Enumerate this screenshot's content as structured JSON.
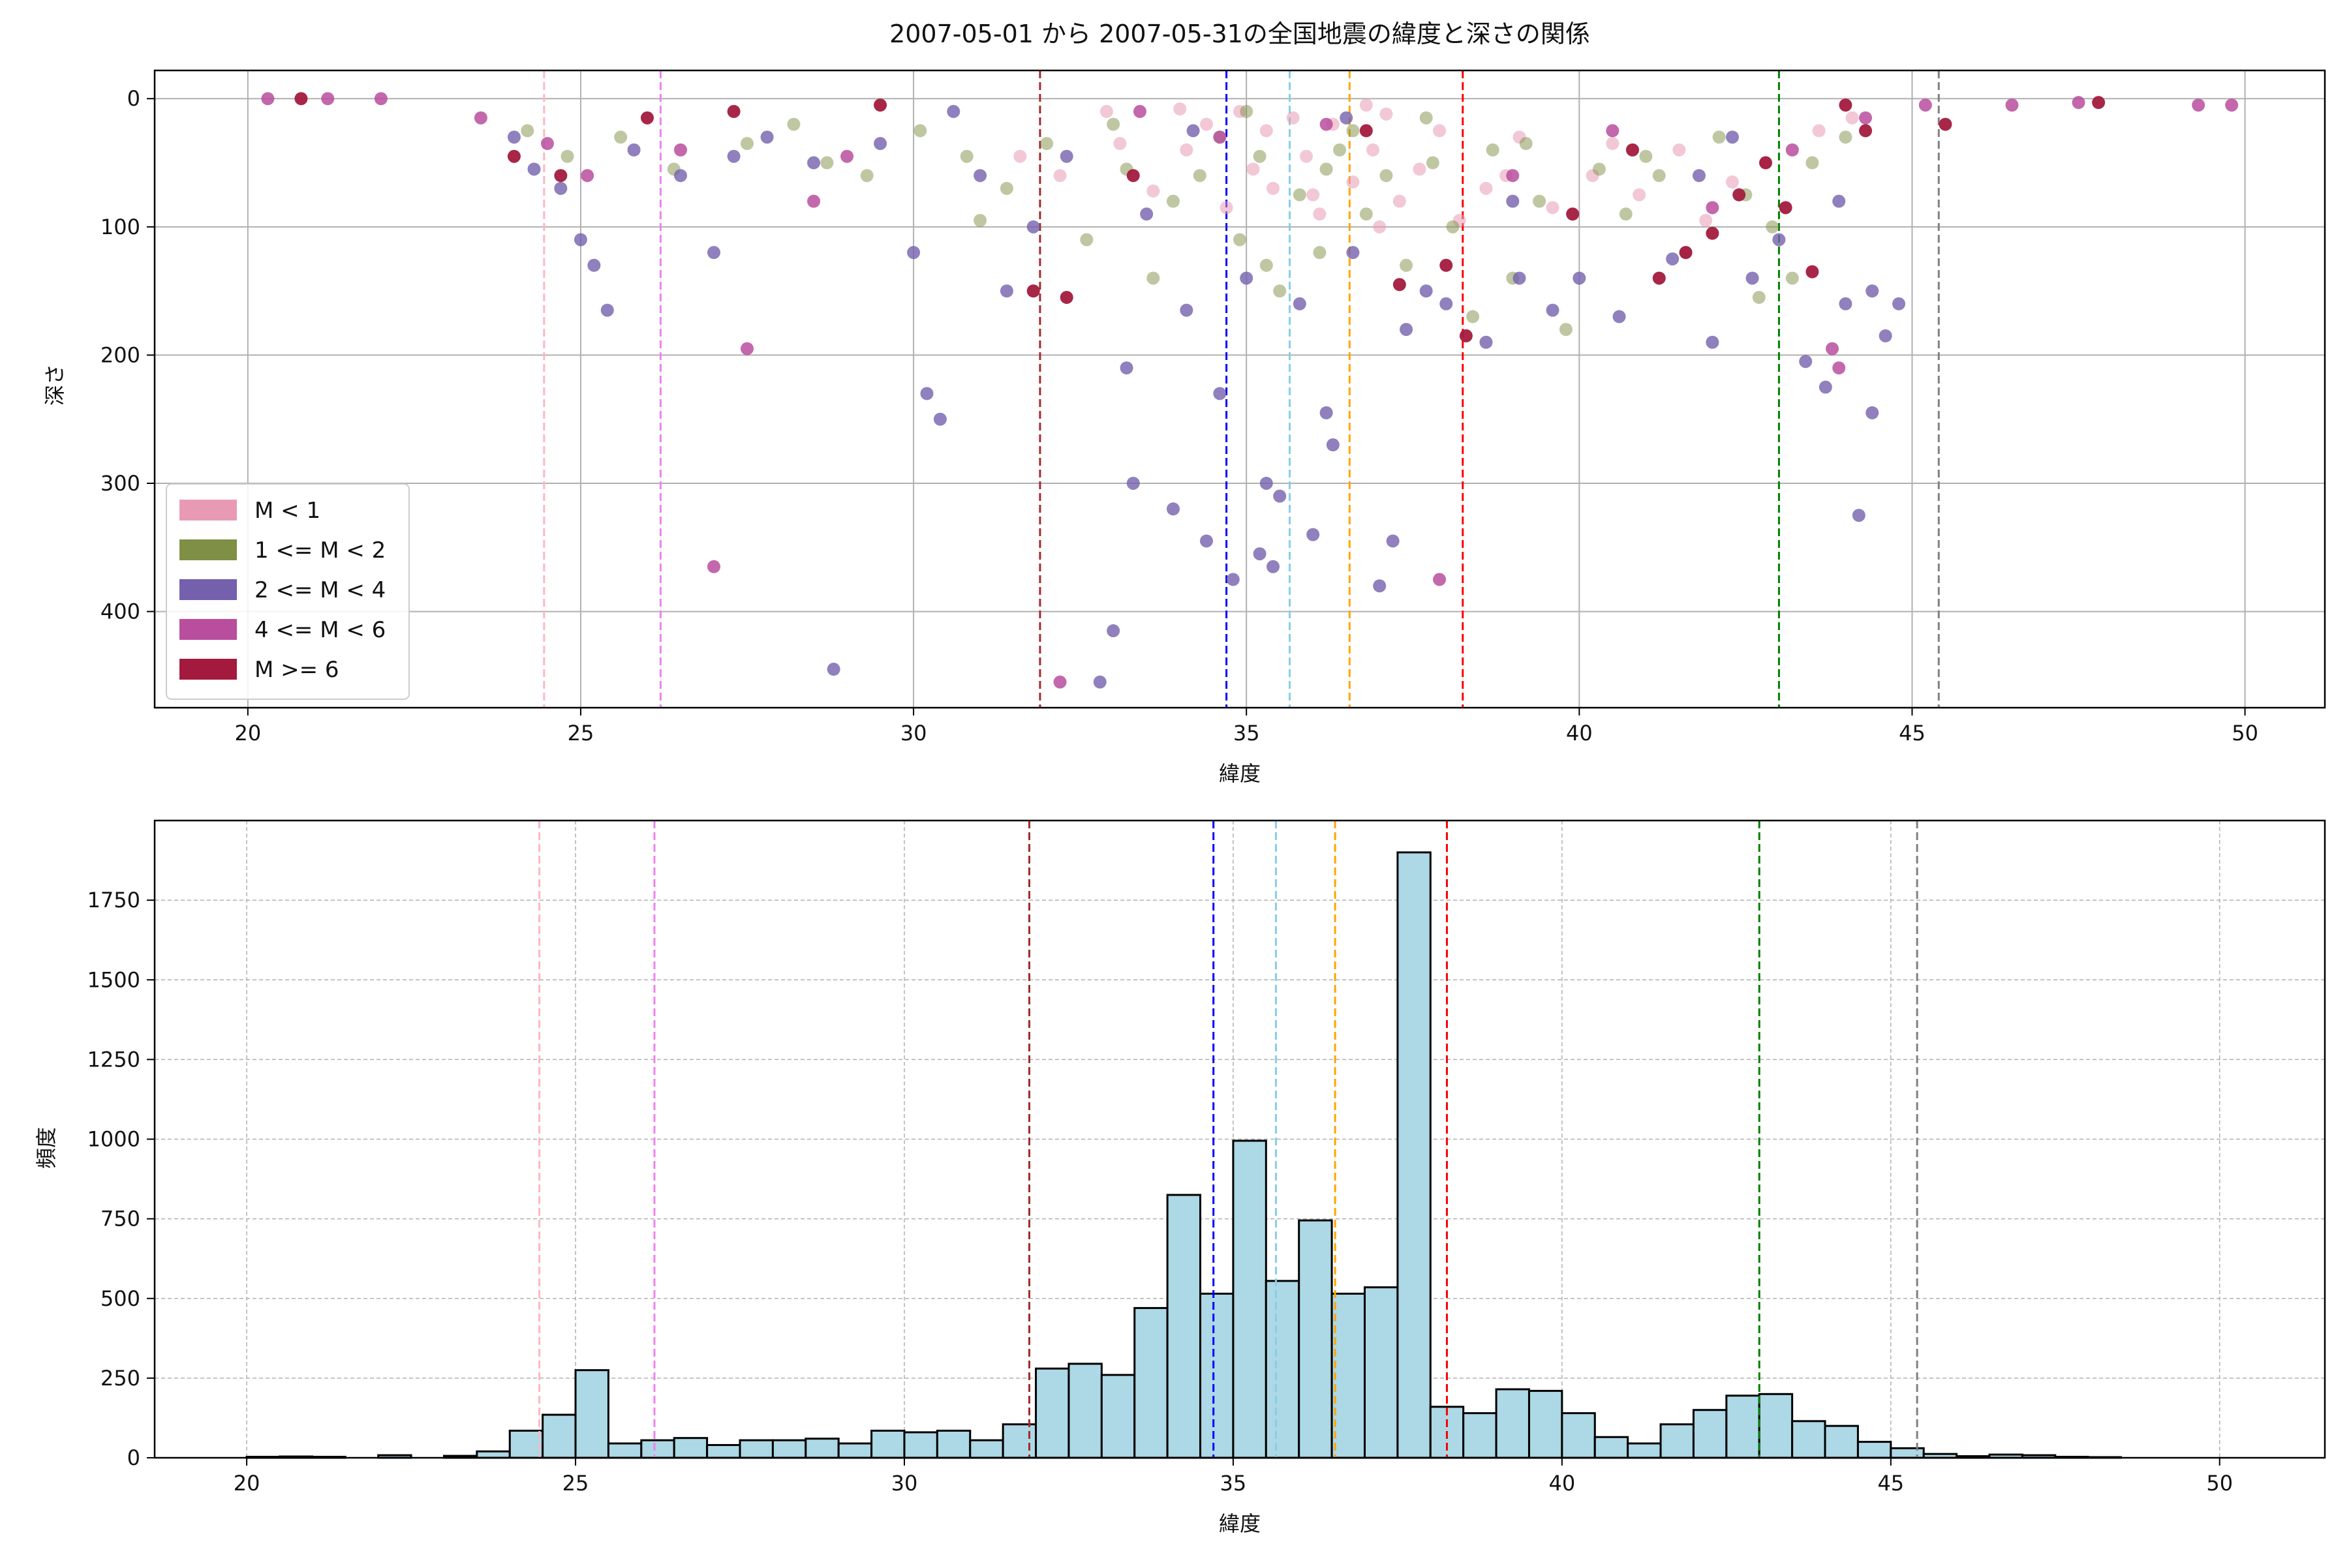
{
  "colors": {
    "m_lt1": "#e89ab5",
    "m_1_2": "#7f8f45",
    "m_2_4": "#7460ad",
    "m_4_6": "#b94d9e",
    "m_ge6": "#a31a3e",
    "hist_fill": "#add8e6",
    "vlines": [
      "#ffb6c1",
      "#ee82ee",
      "#a52a2a",
      "#0000ff",
      "#87ceeb",
      "#ffa500",
      "#ff0000",
      "#008000",
      "#808080"
    ]
  },
  "chart_data": [
    {
      "type": "scatter",
      "title": "2007-05-01 から 2007-05-31の全国地震の緯度と深さの関係",
      "xlabel": "緯度",
      "ylabel": "深さ",
      "xlim": [
        18.6,
        51.2
      ],
      "ylim": [
        475,
        -22
      ],
      "y_inverted": true,
      "grid": true,
      "xticks": [
        20,
        25,
        30,
        35,
        40,
        45,
        50
      ],
      "yticks": [
        0,
        100,
        200,
        300,
        400
      ],
      "legend_position": "lower-left",
      "vlines": [
        24.45,
        26.2,
        31.9,
        34.7,
        35.65,
        36.55,
        38.25,
        43.0,
        45.4
      ],
      "series": [
        {
          "name": "M < 1",
          "points": [
            [
              31.6,
              45
            ],
            [
              32.2,
              60
            ],
            [
              33.1,
              35
            ],
            [
              33.6,
              72
            ],
            [
              34.1,
              40
            ],
            [
              34.4,
              20
            ],
            [
              34.9,
              10
            ],
            [
              35.1,
              55
            ],
            [
              35.4,
              70
            ],
            [
              35.7,
              15
            ],
            [
              35.9,
              45
            ],
            [
              36.1,
              90
            ],
            [
              36.3,
              20
            ],
            [
              36.6,
              65
            ],
            [
              36.9,
              40
            ],
            [
              37.1,
              12
            ],
            [
              37.3,
              80
            ],
            [
              37.6,
              55
            ],
            [
              37.9,
              25
            ],
            [
              38.2,
              95
            ],
            [
              38.6,
              70
            ],
            [
              39.1,
              30
            ],
            [
              39.6,
              85
            ],
            [
              40.2,
              60
            ],
            [
              40.9,
              75
            ],
            [
              41.5,
              40
            ],
            [
              41.9,
              95
            ],
            [
              42.3,
              65
            ],
            [
              42.8,
              50
            ],
            [
              43.6,
              25
            ],
            [
              44.1,
              15
            ],
            [
              32.9,
              10
            ],
            [
              34.7,
              85
            ],
            [
              36.0,
              75
            ],
            [
              37.0,
              100
            ],
            [
              38.9,
              60
            ],
            [
              40.5,
              35
            ],
            [
              35.3,
              25
            ],
            [
              36.8,
              5
            ],
            [
              34.0,
              8
            ]
          ]
        },
        {
          "name": "1 <= M < 2",
          "points": [
            [
              24.2,
              25
            ],
            [
              24.8,
              45
            ],
            [
              25.6,
              30
            ],
            [
              26.4,
              55
            ],
            [
              27.5,
              35
            ],
            [
              28.2,
              20
            ],
            [
              29.3,
              60
            ],
            [
              30.1,
              25
            ],
            [
              30.8,
              45
            ],
            [
              31.4,
              70
            ],
            [
              32.0,
              35
            ],
            [
              32.6,
              110
            ],
            [
              33.2,
              55
            ],
            [
              33.6,
              140
            ],
            [
              33.9,
              80
            ],
            [
              34.3,
              60
            ],
            [
              34.6,
              30
            ],
            [
              34.9,
              110
            ],
            [
              35.2,
              45
            ],
            [
              35.5,
              150
            ],
            [
              35.8,
              75
            ],
            [
              36.1,
              120
            ],
            [
              36.4,
              40
            ],
            [
              36.8,
              90
            ],
            [
              37.1,
              60
            ],
            [
              37.4,
              130
            ],
            [
              37.8,
              50
            ],
            [
              38.1,
              100
            ],
            [
              38.4,
              170
            ],
            [
              38.7,
              40
            ],
            [
              39.0,
              140
            ],
            [
              39.4,
              80
            ],
            [
              39.8,
              180
            ],
            [
              40.3,
              55
            ],
            [
              40.7,
              90
            ],
            [
              41.2,
              60
            ],
            [
              41.6,
              120
            ],
            [
              42.1,
              30
            ],
            [
              42.5,
              75
            ],
            [
              42.9,
              100
            ],
            [
              43.2,
              140
            ],
            [
              43.5,
              50
            ],
            [
              44.0,
              30
            ],
            [
              28.7,
              50
            ],
            [
              31.0,
              95
            ],
            [
              33.0,
              20
            ],
            [
              35.0,
              10
            ],
            [
              36.6,
              25
            ],
            [
              37.7,
              15
            ],
            [
              39.2,
              35
            ],
            [
              41.0,
              45
            ],
            [
              42.7,
              155
            ],
            [
              35.3,
              130
            ],
            [
              36.2,
              55
            ]
          ]
        },
        {
          "name": "2 <= M < 4",
          "points": [
            [
              24.0,
              30
            ],
            [
              24.3,
              55
            ],
            [
              24.7,
              70
            ],
            [
              25.0,
              110
            ],
            [
              25.2,
              130
            ],
            [
              25.4,
              165
            ],
            [
              25.8,
              40
            ],
            [
              26.5,
              60
            ],
            [
              27.0,
              120
            ],
            [
              27.8,
              30
            ],
            [
              28.5,
              50
            ],
            [
              28.8,
              445
            ],
            [
              29.5,
              35
            ],
            [
              30.0,
              120
            ],
            [
              30.2,
              230
            ],
            [
              30.4,
              250
            ],
            [
              31.0,
              60
            ],
            [
              31.4,
              150
            ],
            [
              31.8,
              100
            ],
            [
              32.3,
              45
            ],
            [
              32.8,
              455
            ],
            [
              33.0,
              415
            ],
            [
              33.2,
              210
            ],
            [
              33.3,
              300
            ],
            [
              33.5,
              90
            ],
            [
              33.9,
              320
            ],
            [
              34.1,
              165
            ],
            [
              34.4,
              345
            ],
            [
              34.6,
              230
            ],
            [
              34.8,
              375
            ],
            [
              35.0,
              140
            ],
            [
              35.2,
              355
            ],
            [
              35.3,
              300
            ],
            [
              35.4,
              365
            ],
            [
              35.5,
              310
            ],
            [
              35.8,
              160
            ],
            [
              36.0,
              340
            ],
            [
              36.2,
              245
            ],
            [
              36.3,
              270
            ],
            [
              36.6,
              120
            ],
            [
              37.0,
              380
            ],
            [
              37.2,
              345
            ],
            [
              37.4,
              180
            ],
            [
              37.7,
              150
            ],
            [
              38.0,
              160
            ],
            [
              38.6,
              190
            ],
            [
              39.1,
              140
            ],
            [
              39.6,
              165
            ],
            [
              40.0,
              140
            ],
            [
              40.6,
              170
            ],
            [
              41.4,
              125
            ],
            [
              42.0,
              190
            ],
            [
              42.6,
              140
            ],
            [
              43.0,
              110
            ],
            [
              43.4,
              205
            ],
            [
              43.7,
              225
            ],
            [
              44.0,
              160
            ],
            [
              44.2,
              325
            ],
            [
              44.4,
              245
            ],
            [
              44.6,
              185
            ],
            [
              44.8,
              160
            ],
            [
              39.0,
              80
            ],
            [
              41.8,
              60
            ],
            [
              42.3,
              30
            ],
            [
              36.5,
              15
            ],
            [
              34.2,
              25
            ],
            [
              30.6,
              10
            ],
            [
              27.3,
              45
            ],
            [
              43.9,
              80
            ],
            [
              44.4,
              150
            ]
          ]
        },
        {
          "name": "4 <= M < 6",
          "points": [
            [
              20.3,
              0
            ],
            [
              21.2,
              0
            ],
            [
              22.0,
              0
            ],
            [
              23.5,
              15
            ],
            [
              24.5,
              35
            ],
            [
              25.1,
              60
            ],
            [
              26.5,
              40
            ],
            [
              27.0,
              365
            ],
            [
              27.5,
              195
            ],
            [
              28.5,
              80
            ],
            [
              29.0,
              45
            ],
            [
              32.2,
              455
            ],
            [
              34.6,
              30
            ],
            [
              36.2,
              20
            ],
            [
              37.9,
              375
            ],
            [
              39.0,
              60
            ],
            [
              42.0,
              85
            ],
            [
              43.2,
              40
            ],
            [
              43.8,
              195
            ],
            [
              43.9,
              210
            ],
            [
              45.2,
              5
            ],
            [
              46.5,
              5
            ],
            [
              47.5,
              3
            ],
            [
              49.3,
              5
            ],
            [
              49.8,
              5
            ],
            [
              44.3,
              15
            ],
            [
              40.5,
              25
            ],
            [
              33.4,
              10
            ]
          ]
        },
        {
          "name": "M >= 6",
          "points": [
            [
              20.8,
              0
            ],
            [
              24.0,
              45
            ],
            [
              24.7,
              60
            ],
            [
              26.0,
              15
            ],
            [
              27.3,
              10
            ],
            [
              29.5,
              5
            ],
            [
              31.8,
              150
            ],
            [
              32.3,
              155
            ],
            [
              33.3,
              60
            ],
            [
              36.8,
              25
            ],
            [
              37.3,
              145
            ],
            [
              38.0,
              130
            ],
            [
              38.3,
              185
            ],
            [
              39.9,
              90
            ],
            [
              41.2,
              140
            ],
            [
              41.6,
              120
            ],
            [
              42.0,
              105
            ],
            [
              42.4,
              75
            ],
            [
              42.8,
              50
            ],
            [
              43.1,
              85
            ],
            [
              43.5,
              135
            ],
            [
              44.0,
              5
            ],
            [
              44.3,
              25
            ],
            [
              45.5,
              20
            ],
            [
              47.8,
              3
            ],
            [
              40.8,
              40
            ]
          ]
        }
      ]
    },
    {
      "type": "bar",
      "xlabel": "緯度",
      "ylabel": "頻度",
      "xlim": [
        18.6,
        51.6
      ],
      "ylim": [
        0,
        2000
      ],
      "grid": true,
      "xticks": [
        20,
        25,
        30,
        35,
        40,
        45,
        50
      ],
      "yticks": [
        0,
        250,
        500,
        750,
        1000,
        1250,
        1500,
        1750
      ],
      "bin_width": 0.5,
      "vlines": [
        24.45,
        26.2,
        31.9,
        34.7,
        35.65,
        36.55,
        38.25,
        43.0,
        45.4
      ],
      "bins": [
        [
          20.0,
          3
        ],
        [
          20.5,
          4
        ],
        [
          21.0,
          3
        ],
        [
          22.0,
          8
        ],
        [
          23.0,
          6
        ],
        [
          23.5,
          20
        ],
        [
          24.0,
          85
        ],
        [
          24.5,
          135
        ],
        [
          25.0,
          275
        ],
        [
          25.5,
          45
        ],
        [
          26.0,
          55
        ],
        [
          26.5,
          62
        ],
        [
          27.0,
          40
        ],
        [
          27.5,
          55
        ],
        [
          28.0,
          55
        ],
        [
          28.5,
          60
        ],
        [
          29.0,
          45
        ],
        [
          29.5,
          85
        ],
        [
          30.0,
          80
        ],
        [
          30.5,
          85
        ],
        [
          31.0,
          55
        ],
        [
          31.5,
          105
        ],
        [
          32.0,
          280
        ],
        [
          32.5,
          295
        ],
        [
          33.0,
          260
        ],
        [
          33.5,
          470
        ],
        [
          34.0,
          825
        ],
        [
          34.5,
          515
        ],
        [
          35.0,
          995
        ],
        [
          35.5,
          555
        ],
        [
          36.0,
          745
        ],
        [
          36.5,
          515
        ],
        [
          37.0,
          535
        ],
        [
          37.5,
          1900
        ],
        [
          38.0,
          160
        ],
        [
          38.5,
          140
        ],
        [
          39.0,
          215
        ],
        [
          39.5,
          210
        ],
        [
          40.0,
          140
        ],
        [
          40.5,
          65
        ],
        [
          41.0,
          45
        ],
        [
          41.5,
          105
        ],
        [
          42.0,
          150
        ],
        [
          42.5,
          195
        ],
        [
          43.0,
          200
        ],
        [
          43.5,
          115
        ],
        [
          44.0,
          100
        ],
        [
          44.5,
          50
        ],
        [
          45.0,
          30
        ],
        [
          45.5,
          12
        ],
        [
          46.0,
          5
        ],
        [
          46.5,
          10
        ],
        [
          47.0,
          8
        ],
        [
          47.5,
          3
        ],
        [
          48.0,
          2
        ]
      ]
    }
  ]
}
